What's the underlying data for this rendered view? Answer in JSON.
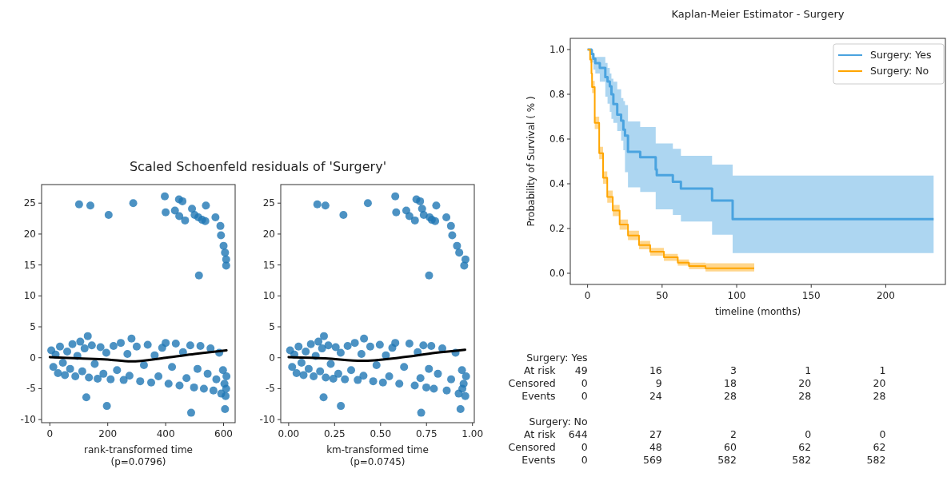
{
  "chart_data": [
    {
      "type": "scatter",
      "title": "Scaled Schoenfeld residuals of 'Surgery'",
      "xlabel": "rank-transformed time",
      "annotations": [
        "(p=0.0796)"
      ],
      "xlim": [
        -28.5,
        640
      ],
      "xticks": [
        0,
        200,
        400,
        600
      ],
      "ylim": [
        -10.5,
        28
      ],
      "yticks": [
        -10,
        -5,
        0,
        5,
        10,
        15,
        20,
        25
      ],
      "series": [
        {
          "type": "scatter",
          "marker": "circle",
          "color": "#1f77b4",
          "x": [
            101,
            140,
            203,
            288,
            397,
            400,
            432,
            446,
            458,
            447,
            467,
            491,
            500,
            513,
            539,
            526,
            537,
            572,
            589,
            591,
            600,
            605,
            609,
            609,
            515,
            126,
            197,
            488,
            605,
            609,
            131,
            282,
            5,
            12,
            20,
            28,
            35,
            45,
            52,
            60,
            70,
            78,
            88,
            95,
            105,
            112,
            120,
            135,
            145,
            155,
            165,
            175,
            185,
            195,
            210,
            220,
            232,
            245,
            255,
            268,
            275,
            300,
            312,
            325,
            338,
            350,
            362,
            375,
            388,
            400,
            410,
            422,
            435,
            448,
            460,
            472,
            485,
            498,
            510,
            520,
            532,
            545,
            555,
            565,
            575,
            585,
            592,
            598,
            603,
            607,
            610
          ],
          "values": [
            24.8,
            24.6,
            23.1,
            25.0,
            26.1,
            23.5,
            23.8,
            25.6,
            25.3,
            22.9,
            22.2,
            24.1,
            23.1,
            22.7,
            24.6,
            22.3,
            22.1,
            22.7,
            21.3,
            19.8,
            18.1,
            17.0,
            15.9,
            14.9,
            13.3,
            -6.4,
            -7.8,
            -8.9,
            -8.3,
            -5.0,
            3.5,
            3.1,
            1.2,
            -1.5,
            0.5,
            -2.5,
            1.8,
            -0.8,
            -2.8,
            1.0,
            -1.8,
            2.2,
            -3.0,
            0.3,
            2.6,
            -2.2,
            1.5,
            -3.2,
            2.0,
            -1.0,
            -3.4,
            1.7,
            -2.6,
            0.8,
            -3.5,
            1.9,
            -2.0,
            2.4,
            -3.6,
            0.6,
            -2.9,
            1.8,
            -3.8,
            -1.2,
            2.1,
            -4.0,
            0.4,
            -3.0,
            1.6,
            2.4,
            -4.2,
            -1.5,
            2.3,
            -4.5,
            0.9,
            -3.3,
            2.0,
            -4.8,
            -1.8,
            1.9,
            -5.0,
            -2.6,
            1.5,
            -5.3,
            -3.5,
            0.8,
            -5.8,
            -2.0,
            -4.2,
            -6.2,
            -3.0
          ]
        },
        {
          "type": "line",
          "color": "#000000",
          "x": [
            0,
            100,
            200,
            280,
            400,
            500,
            610
          ],
          "values": [
            0.1,
            -0.1,
            -0.3,
            -0.6,
            0,
            0.6,
            1.2
          ]
        }
      ]
    },
    {
      "type": "scatter",
      "xlabel": "km-transformed time",
      "annotations": [
        "(p=0.0745)"
      ],
      "xlim": [
        -0.043,
        1.01
      ],
      "xticks": [
        {
          "value": 0,
          "label": "0.00"
        },
        {
          "value": 0.25,
          "label": "0.25"
        },
        {
          "value": 0.5,
          "label": "0.50"
        },
        {
          "value": 0.75,
          "label": "0.75"
        },
        {
          "value": 1,
          "label": "1.00"
        }
      ],
      "ylim": [
        -10.5,
        28
      ],
      "yticks": [
        -10,
        -5,
        0,
        5,
        10,
        15,
        20,
        25
      ],
      "series": [
        {
          "type": "scatter",
          "marker": "circle",
          "color": "#1f77b4",
          "x": [
            0.156,
            0.2,
            0.298,
            0.431,
            0.58,
            0.585,
            0.64,
            0.695,
            0.715,
            0.657,
            0.687,
            0.726,
            0.735,
            0.767,
            0.803,
            0.779,
            0.797,
            0.858,
            0.883,
            0.89,
            0.916,
            0.928,
            0.962,
            0.955,
            0.764,
            0.19,
            0.284,
            0.721,
            0.935,
            0.945,
            0.192,
            0.41,
            0.008,
            0.019,
            0.031,
            0.043,
            0.054,
            0.07,
            0.081,
            0.093,
            0.109,
            0.121,
            0.136,
            0.147,
            0.162,
            0.171,
            0.182,
            0.202,
            0.216,
            0.229,
            0.243,
            0.256,
            0.27,
            0.283,
            0.306,
            0.321,
            0.34,
            0.36,
            0.376,
            0.396,
            0.407,
            0.444,
            0.46,
            0.478,
            0.496,
            0.513,
            0.529,
            0.547,
            0.564,
            0.58,
            0.602,
            0.628,
            0.657,
            0.686,
            0.702,
            0.717,
            0.733,
            0.749,
            0.763,
            0.776,
            0.79,
            0.812,
            0.836,
            0.86,
            0.884,
            0.908,
            0.925,
            0.943,
            0.952,
            0.961,
            0.965
          ],
          "values": [
            24.8,
            24.6,
            23.1,
            25.0,
            26.1,
            23.5,
            23.8,
            25.6,
            25.3,
            22.9,
            22.2,
            24.1,
            23.1,
            22.7,
            24.6,
            22.3,
            22.1,
            22.7,
            21.3,
            19.8,
            18.1,
            17.0,
            15.9,
            14.9,
            13.3,
            -6.4,
            -7.8,
            -8.9,
            -8.3,
            -5.0,
            3.5,
            3.1,
            1.2,
            -1.5,
            0.5,
            -2.5,
            1.8,
            -0.8,
            -2.8,
            1.0,
            -1.8,
            2.2,
            -3.0,
            0.3,
            2.6,
            -2.2,
            1.5,
            -3.2,
            2.0,
            -1.0,
            -3.4,
            1.7,
            -2.6,
            0.8,
            -3.5,
            1.9,
            -2.0,
            2.4,
            -3.6,
            0.6,
            -2.9,
            1.8,
            -3.8,
            -1.2,
            2.1,
            -4.0,
            0.4,
            -3.0,
            1.6,
            2.4,
            -4.2,
            -1.5,
            2.3,
            -4.5,
            0.9,
            -3.3,
            2.0,
            -4.8,
            -1.8,
            1.9,
            -5.0,
            -2.6,
            1.5,
            -5.3,
            -3.5,
            0.8,
            -5.8,
            -2.0,
            -4.2,
            -6.2,
            -3.0
          ]
        },
        {
          "type": "line",
          "color": "#000000",
          "x": [
            0,
            0.2,
            0.4,
            0.6,
            0.8,
            0.96
          ],
          "values": [
            0.1,
            -0.1,
            -0.5,
            0,
            0.8,
            1.3
          ]
        }
      ]
    },
    {
      "type": "step",
      "title": "Kaplan-Meier Estimator - Surgery",
      "xlabel": "timeline (months)",
      "ylabel": "Probability of Survival ( % )",
      "legend": "top right",
      "xlim": [
        -11.6,
        240
      ],
      "xticks": [
        0,
        50,
        100,
        150,
        200
      ],
      "ylim": [
        -0.05,
        1.05
      ],
      "yticks": [
        {
          "value": 0,
          "label": "0.0"
        },
        {
          "value": 0.2,
          "label": "0.2"
        },
        {
          "value": 0.4,
          "label": "0.4"
        },
        {
          "value": 0.6,
          "label": "0.6"
        },
        {
          "value": 0.8,
          "label": "0.8"
        },
        {
          "value": 1,
          "label": "1.0"
        }
      ],
      "annotations": [
        "Surgery: Yes",
        "At risk 49 16 3 1 1",
        "Censored 0 9 18 20 20",
        "Events 0 24 28 28 28",
        "Surgery: No",
        "At risk 644 27 2 0 0",
        "Censored 0 48 60 62 62",
        "Events 0 569 582 582 582"
      ],
      "series": [
        {
          "name": "Surgery: Yes",
          "color": "#4aa3df",
          "x": [
            0,
            2.6,
            3.9,
            5.2,
            8.2,
            11.9,
            13.4,
            14.9,
            16.0,
            17.3,
            19.9,
            22.5,
            24.0,
            25.1,
            27.1,
            35.3,
            45.7,
            46.4,
            57.2,
            62.6,
            83.5,
            97.3,
            232.1
          ],
          "values": [
            1,
            0.98,
            0.959,
            0.939,
            0.918,
            0.877,
            0.857,
            0.836,
            0.8,
            0.756,
            0.709,
            0.682,
            0.642,
            0.615,
            0.543,
            0.519,
            0.464,
            0.438,
            0.409,
            0.379,
            0.325,
            0.242,
            0.242
          ],
          "upper": [
            1,
            1,
            0.967,
            0.967,
            0.967,
            0.94,
            0.918,
            0.893,
            0.87,
            0.856,
            0.822,
            0.783,
            0.77,
            0.752,
            0.679,
            0.654,
            0.58,
            0.58,
            0.556,
            0.525,
            0.486,
            0.437,
            0.437
          ],
          "lower": [
            1,
            0.942,
            0.91,
            0.893,
            0.856,
            0.789,
            0.758,
            0.721,
            0.69,
            0.672,
            0.636,
            0.593,
            0.55,
            0.452,
            0.384,
            0.363,
            0.286,
            0.286,
            0.261,
            0.231,
            0.172,
            0.09,
            0.09
          ]
        },
        {
          "name": "Surgery: No",
          "color": "#ffa500",
          "x": [
            0,
            1.7,
            2.6,
            3,
            4.8,
            7.8,
            10.4,
            13.2,
            16.9,
            21.5,
            27.1,
            34.5,
            42,
            51.2,
            60.5,
            68,
            79.1,
            111.8
          ],
          "values": [
            1,
            0.955,
            0.893,
            0.832,
            0.672,
            0.537,
            0.427,
            0.341,
            0.28,
            0.218,
            0.169,
            0.126,
            0.096,
            0.071,
            0.047,
            0.032,
            0.022,
            0.022
          ],
          "upper": [
            1,
            0.97,
            0.915,
            0.86,
            0.7,
            0.565,
            0.455,
            0.37,
            0.305,
            0.24,
            0.19,
            0.145,
            0.113,
            0.087,
            0.062,
            0.047,
            0.045,
            0.045
          ],
          "lower": [
            1,
            0.94,
            0.87,
            0.805,
            0.645,
            0.51,
            0.4,
            0.315,
            0.255,
            0.195,
            0.148,
            0.107,
            0.079,
            0.055,
            0.034,
            0.019,
            0.008,
            0.008
          ]
        }
      ]
    }
  ]
}
